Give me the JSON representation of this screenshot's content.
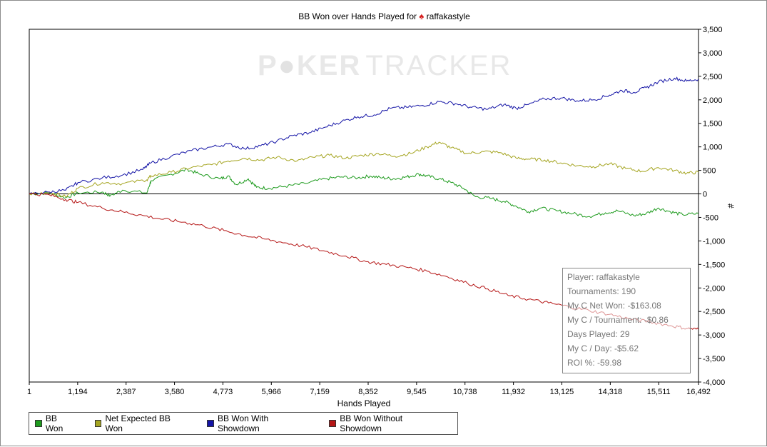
{
  "title": {
    "prefix": "BB Won over Hands Played for",
    "icon": "spade-icon",
    "player": "raffakastyle"
  },
  "watermark": {
    "part1": "P",
    "part2": "KER",
    "part3": "TRACKER"
  },
  "chart_data": {
    "type": "line",
    "xlabel": "Hands Played",
    "ylabel": "#",
    "xlim": [
      1,
      16492
    ],
    "ylim": [
      -4000,
      3500
    ],
    "x_ticks": [
      "1",
      "1,194",
      "2,387",
      "3,580",
      "4,773",
      "5,966",
      "7,159",
      "8,352",
      "9,545",
      "10,738",
      "11,932",
      "13,125",
      "14,318",
      "15,511",
      "16,492"
    ],
    "x_tick_values": [
      1,
      1194,
      2387,
      3580,
      4773,
      5966,
      7159,
      8352,
      9545,
      10738,
      11932,
      13125,
      14318,
      15511,
      16492
    ],
    "y_ticks": [
      "3,500",
      "3,000",
      "2,500",
      "2,000",
      "1,500",
      "1,000",
      "500",
      "0",
      "-500",
      "-1,000",
      "-1,500",
      "-2,000",
      "-2,500",
      "-3,000",
      "-3,500",
      "-4,000"
    ],
    "y_tick_values": [
      3500,
      3000,
      2500,
      2000,
      1500,
      1000,
      500,
      0,
      -500,
      -1000,
      -1500,
      -2000,
      -2500,
      -3000,
      -3500,
      -4000
    ],
    "legend_position": "bottom-left",
    "series": [
      {
        "name": "BB Won",
        "color": "#1e9b1e",
        "points": [
          [
            1,
            0
          ],
          [
            500,
            20
          ],
          [
            900,
            -80
          ],
          [
            1200,
            20
          ],
          [
            1800,
            40
          ],
          [
            2000,
            -40
          ],
          [
            2300,
            80
          ],
          [
            2900,
            20
          ],
          [
            3000,
            280
          ],
          [
            3500,
            420
          ],
          [
            3900,
            520
          ],
          [
            4200,
            420
          ],
          [
            4700,
            320
          ],
          [
            4900,
            380
          ],
          [
            5100,
            200
          ],
          [
            5400,
            320
          ],
          [
            5600,
            140
          ],
          [
            5900,
            120
          ],
          [
            6300,
            160
          ],
          [
            6800,
            220
          ],
          [
            7300,
            320
          ],
          [
            7700,
            360
          ],
          [
            8100,
            340
          ],
          [
            8400,
            380
          ],
          [
            8700,
            340
          ],
          [
            9000,
            320
          ],
          [
            9300,
            360
          ],
          [
            9600,
            420
          ],
          [
            9800,
            380
          ],
          [
            10100,
            320
          ],
          [
            10400,
            240
          ],
          [
            10700,
            120
          ],
          [
            11000,
            -60
          ],
          [
            11400,
            -100
          ],
          [
            11700,
            -160
          ],
          [
            12000,
            -260
          ],
          [
            12300,
            -380
          ],
          [
            12600,
            -300
          ],
          [
            13000,
            -360
          ],
          [
            13400,
            -420
          ],
          [
            13800,
            -480
          ],
          [
            14200,
            -400
          ],
          [
            14500,
            -360
          ],
          [
            14900,
            -460
          ],
          [
            15200,
            -420
          ],
          [
            15500,
            -300
          ],
          [
            15800,
            -380
          ],
          [
            16100,
            -440
          ],
          [
            16492,
            -420
          ]
        ]
      },
      {
        "name": "Net Expected BB Won",
        "color": "#a5a521",
        "points": [
          [
            1,
            0
          ],
          [
            500,
            30
          ],
          [
            900,
            -60
          ],
          [
            1200,
            120
          ],
          [
            1800,
            240
          ],
          [
            2300,
            220
          ],
          [
            2900,
            300
          ],
          [
            3000,
            380
          ],
          [
            3500,
            460
          ],
          [
            4000,
            560
          ],
          [
            4500,
            620
          ],
          [
            4900,
            700
          ],
          [
            5300,
            760
          ],
          [
            5700,
            720
          ],
          [
            6100,
            780
          ],
          [
            6600,
            700
          ],
          [
            7000,
            780
          ],
          [
            7400,
            820
          ],
          [
            7800,
            760
          ],
          [
            8200,
            820
          ],
          [
            8600,
            860
          ],
          [
            9000,
            800
          ],
          [
            9400,
            860
          ],
          [
            9800,
            1000
          ],
          [
            10100,
            1100
          ],
          [
            10400,
            980
          ],
          [
            10800,
            860
          ],
          [
            11200,
            900
          ],
          [
            11600,
            880
          ],
          [
            12000,
            760
          ],
          [
            12300,
            740
          ],
          [
            12700,
            720
          ],
          [
            13100,
            660
          ],
          [
            13500,
            600
          ],
          [
            13900,
            580
          ],
          [
            14300,
            640
          ],
          [
            14700,
            540
          ],
          [
            15100,
            480
          ],
          [
            15500,
            560
          ],
          [
            15900,
            500
          ],
          [
            16200,
            440
          ],
          [
            16492,
            460
          ]
        ]
      },
      {
        "name": "BB Won With Showdown",
        "color": "#1414a6",
        "points": [
          [
            1,
            0
          ],
          [
            500,
            40
          ],
          [
            900,
            80
          ],
          [
            1200,
            240
          ],
          [
            1800,
            340
          ],
          [
            2300,
            400
          ],
          [
            2800,
            520
          ],
          [
            3000,
            660
          ],
          [
            3500,
            800
          ],
          [
            4000,
            920
          ],
          [
            4500,
            1000
          ],
          [
            4900,
            1060
          ],
          [
            5300,
            960
          ],
          [
            5700,
            1020
          ],
          [
            6100,
            1120
          ],
          [
            6500,
            1240
          ],
          [
            6900,
            1300
          ],
          [
            7300,
            1420
          ],
          [
            7700,
            1540
          ],
          [
            8100,
            1640
          ],
          [
            8500,
            1680
          ],
          [
            8900,
            1820
          ],
          [
            9300,
            1840
          ],
          [
            9700,
            1880
          ],
          [
            10100,
            1960
          ],
          [
            10500,
            1920
          ],
          [
            10900,
            1840
          ],
          [
            11300,
            1800
          ],
          [
            11700,
            1900
          ],
          [
            12000,
            1820
          ],
          [
            12300,
            1900
          ],
          [
            12700,
            2020
          ],
          [
            13100,
            2040
          ],
          [
            13500,
            1980
          ],
          [
            13900,
            2000
          ],
          [
            14300,
            2100
          ],
          [
            14600,
            2200
          ],
          [
            14900,
            2160
          ],
          [
            15200,
            2260
          ],
          [
            15500,
            2380
          ],
          [
            15900,
            2460
          ],
          [
            16200,
            2400
          ],
          [
            16492,
            2440
          ]
        ]
      },
      {
        "name": "BB Won Without Showdown",
        "color": "#b51616",
        "points": [
          [
            1,
            0
          ],
          [
            500,
            -20
          ],
          [
            900,
            -120
          ],
          [
            1200,
            -180
          ],
          [
            1800,
            -300
          ],
          [
            2300,
            -380
          ],
          [
            2800,
            -460
          ],
          [
            3300,
            -540
          ],
          [
            3800,
            -600
          ],
          [
            4300,
            -680
          ],
          [
            4800,
            -780
          ],
          [
            5300,
            -880
          ],
          [
            5800,
            -960
          ],
          [
            6300,
            -1040
          ],
          [
            6800,
            -1120
          ],
          [
            7300,
            -1220
          ],
          [
            7800,
            -1320
          ],
          [
            8300,
            -1440
          ],
          [
            8800,
            -1500
          ],
          [
            9300,
            -1560
          ],
          [
            9800,
            -1640
          ],
          [
            10300,
            -1760
          ],
          [
            10800,
            -1900
          ],
          [
            11300,
            -2020
          ],
          [
            11800,
            -2160
          ],
          [
            12300,
            -2240
          ],
          [
            12800,
            -2320
          ],
          [
            13300,
            -2400
          ],
          [
            13800,
            -2480
          ],
          [
            14300,
            -2560
          ],
          [
            14800,
            -2660
          ],
          [
            15300,
            -2720
          ],
          [
            15800,
            -2800
          ],
          [
            16200,
            -2860
          ],
          [
            16492,
            -2880
          ]
        ]
      }
    ]
  },
  "legend": [
    {
      "label": "BB Won",
      "color": "#1e9b1e"
    },
    {
      "label": "Net Expected BB Won",
      "color": "#a5a521"
    },
    {
      "label": "BB Won With Showdown",
      "color": "#1414a6"
    },
    {
      "label": "BB Won Without Showdown",
      "color": "#b51616"
    }
  ],
  "info": {
    "player": "Player: raffakastyle",
    "tournaments": "Tournaments: 190",
    "net_won": "My C Net Won: -$163.08",
    "per_tournament": "My C / Tournament: -$0.86",
    "days_played": "Days Played: 29",
    "per_day": "My C / Day: -$5.62",
    "roi": "ROI %: -59.98"
  }
}
